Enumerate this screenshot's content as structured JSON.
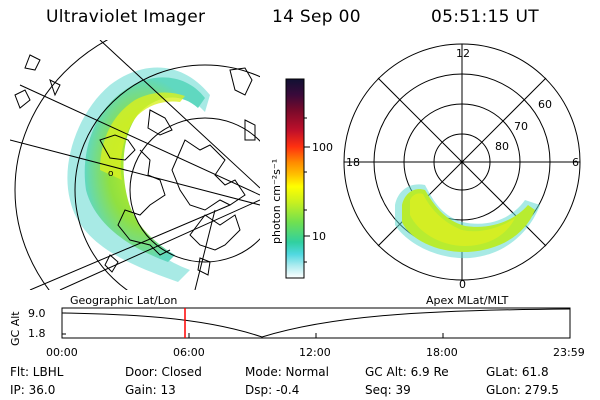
{
  "header": {
    "instrument": "Ultraviolet Imager",
    "date": "14 Sep 00",
    "time": "05:51:15 UT"
  },
  "colorbar": {
    "unit_label": "photon cm⁻²s⁻¹",
    "ticks": [
      "100",
      "10"
    ],
    "colors": [
      "#111133",
      "#3a0a3a",
      "#7a0a2a",
      "#c0102a",
      "#ff3010",
      "#ff8c00",
      "#ffc000",
      "#ffff00",
      "#c8f020",
      "#70e050",
      "#30d0a0",
      "#50d8e0",
      "#b0ecf0",
      "#ffffff"
    ]
  },
  "geo_map": {
    "title": "Geographic Lat/Lon"
  },
  "polar_plot": {
    "title": "Apex MLat/MLT",
    "mlt_labels": {
      "top": "12",
      "left": "18",
      "right": "6",
      "bottom": "0"
    },
    "lat_labels": [
      "60",
      "70",
      "80"
    ]
  },
  "altitude_plot": {
    "ylabel": "GC Alt",
    "yticks": [
      "9.0",
      "1.8"
    ],
    "xticks": [
      "00:00",
      "06:00",
      "12:00",
      "18:00",
      "23:59"
    ],
    "marker_time": "05:51",
    "marker_color": "#ff0000"
  },
  "info": {
    "flt": "Flt: LBHL",
    "ip": "IP: 36.0",
    "door": "Door: Closed",
    "gain": "Gain: 13",
    "mode": "Mode: Normal",
    "dsp": "Dsp:    -0.4",
    "gcalt": "GC Alt: 6.9 Re",
    "seq": "Seq: 39",
    "glat": "GLat:  61.8",
    "glon": "GLon: 279.5"
  }
}
